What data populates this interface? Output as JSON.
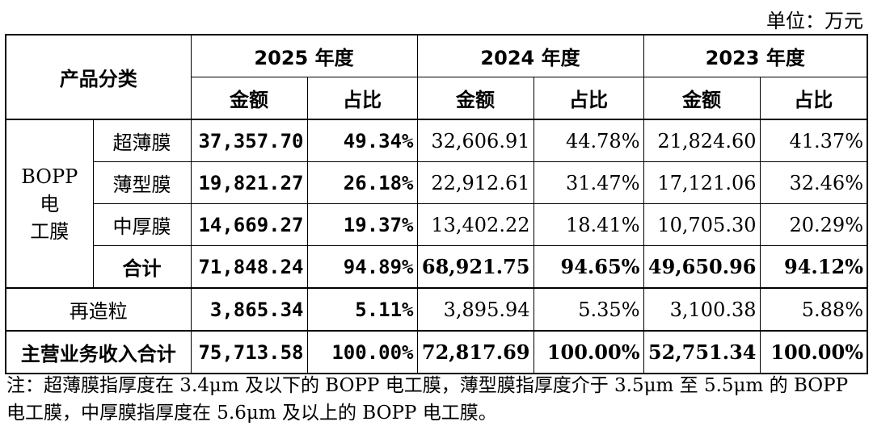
{
  "unit_label": "单位：万元",
  "header": {
    "category": "产品分类",
    "years": [
      "2025 年度",
      "2024 年度",
      "2023 年度"
    ],
    "amount": "金额",
    "ratio": "占比"
  },
  "group": {
    "label_line1": "BOPP 电",
    "label_line2": "工膜",
    "rows": [
      {
        "name": "超薄膜",
        "v2025": "37,357.70",
        "p2025": "49.34%",
        "v2024": "32,606.91",
        "p2024": "44.78%",
        "v2023": "21,824.60",
        "p2023": "41.37%"
      },
      {
        "name": "薄型膜",
        "v2025": "19,821.27",
        "p2025": "26.18%",
        "v2024": "22,912.61",
        "p2024": "31.47%",
        "v2023": "17,121.06",
        "p2023": "32.46%"
      },
      {
        "name": "中厚膜",
        "v2025": "14,669.27",
        "p2025": "19.37%",
        "v2024": "13,402.22",
        "p2024": "18.41%",
        "v2023": "10,705.30",
        "p2023": "20.29%"
      }
    ],
    "subtotal": {
      "name": "合计",
      "v2025": "71,848.24",
      "p2025": "94.89%",
      "v2024": "68,921.75",
      "p2024": "94.65%",
      "v2023": "49,650.96",
      "p2023": "94.12%"
    }
  },
  "recycled": {
    "name": "再造粒",
    "v2025": "3,865.34",
    "p2025": "5.11%",
    "v2024": "3,895.94",
    "p2024": "5.35%",
    "v2023": "3,100.38",
    "p2023": "5.88%"
  },
  "total": {
    "name": "主营业务收入合计",
    "v2025": "75,713.58",
    "p2025": "100.00%",
    "v2024": "72,817.69",
    "p2024": "100.00%",
    "v2023": "52,751.34",
    "p2023": "100.00%"
  },
  "note": "注：超薄膜指厚度在 3.4μm 及以下的 BOPP 电工膜，薄型膜指厚度介于 3.5μm 至 5.5μm 的 BOPP 电工膜，中厚膜指厚度在 5.6μm 及以上的 BOPP 电工膜。"
}
